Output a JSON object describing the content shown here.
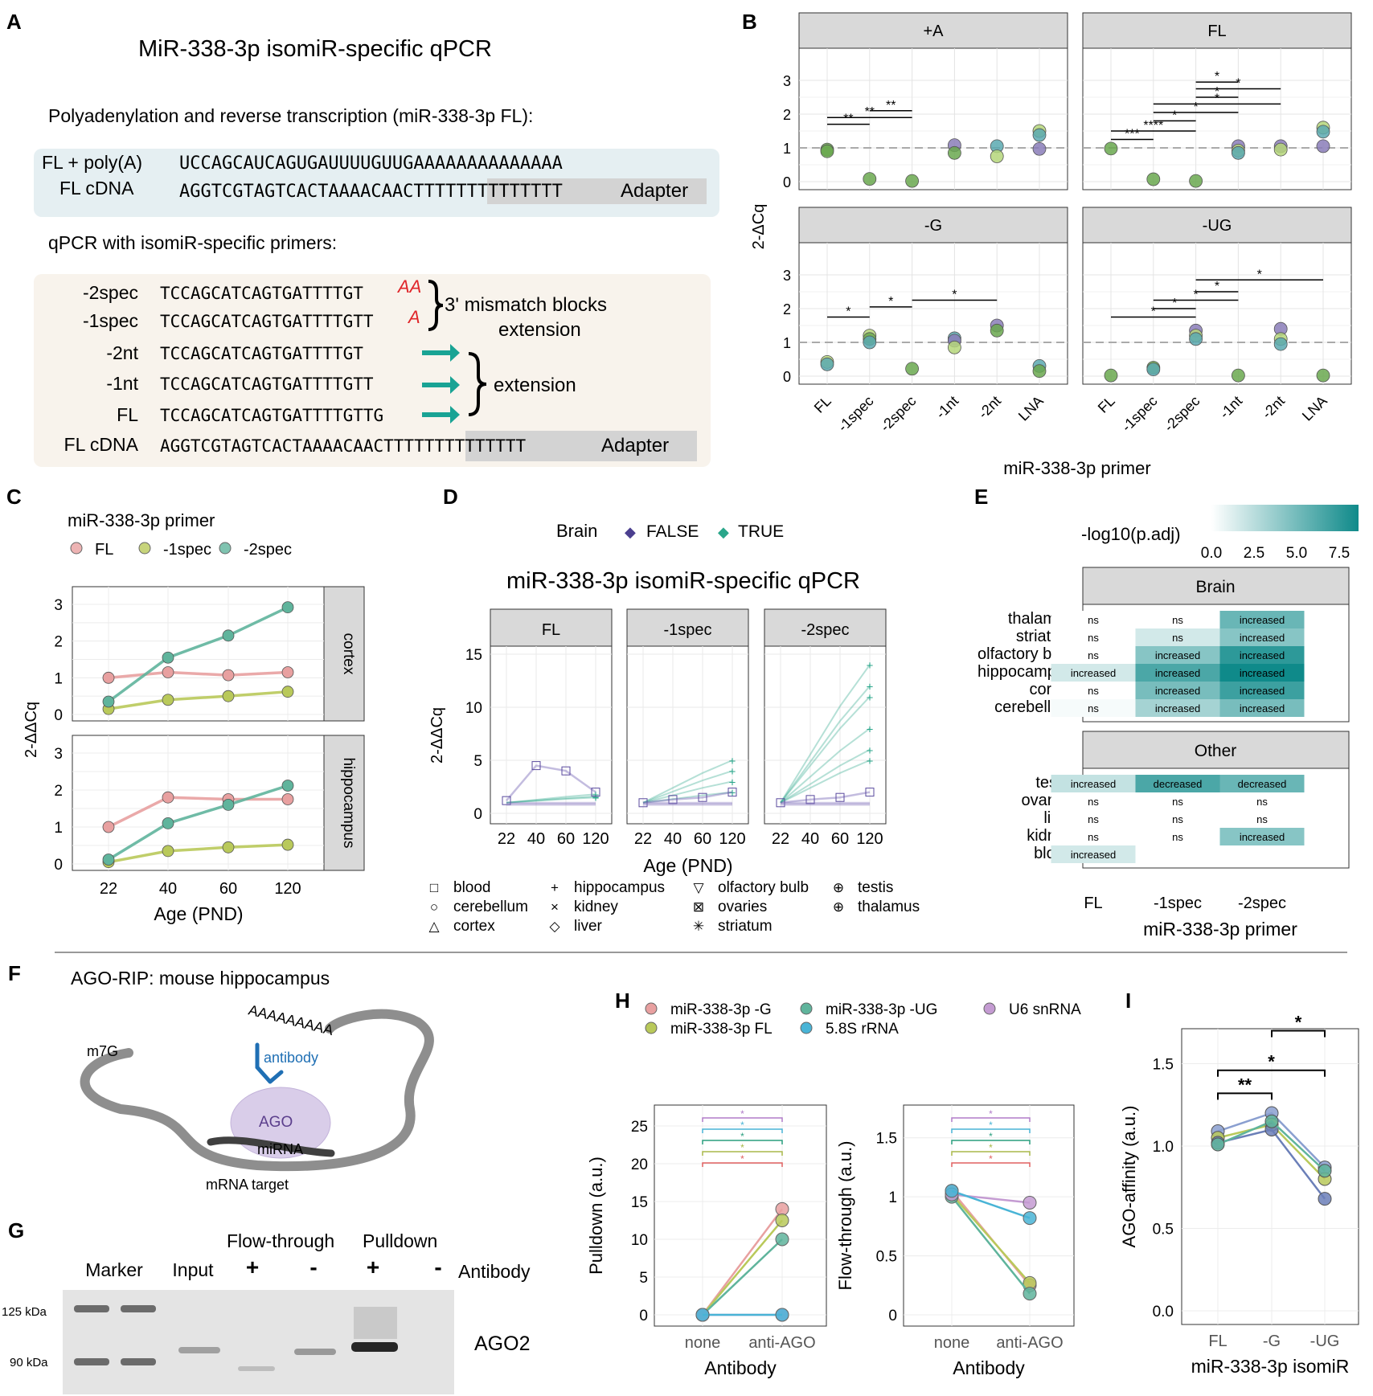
{
  "colors": {
    "fl": "#8fbc3c",
    "m1": "#e8a0a0",
    "g": "#e89a9a",
    "ug": "#5ab394",
    "u6": "#c49bd2",
    "rrna": "#49b4d6",
    "green": "#61a84d",
    "purple": "#5a4a9e",
    "teal": "#2aa68a",
    "arrow": "#19a394",
    "red": "#e0262a",
    "blue": "#2a7fbf",
    "strip": "#d9d9d9"
  },
  "A": {
    "letter": "A",
    "title": "MiR-338-3p isomiR-specific qPCR",
    "subtitle1": "Polyadenylation and reverse transcription (miR-338-3p FL):",
    "box1": {
      "l1": "FL + poly(A)",
      "s1": "UCCAGCAUCAGUGAUUUUGUUGAAAAAAAAAAAAAA",
      "l2": "FL cDNA",
      "s2": "AGGTCGTAGTCACTAAAACAACTTTTTTTTTTTTTT",
      "adapter": "Adapter"
    },
    "subtitle2": "qPCR with isomiR-specific primers:",
    "primers": [
      {
        "label": "-2spec",
        "seq": "TCCAGCATCAGTGATTTTGT",
        "tail": "AA"
      },
      {
        "label": "-1spec",
        "seq": "TCCAGCATCAGTGATTTTGTT",
        "tail": "A"
      },
      {
        "label": "-2nt",
        "seq": "TCCAGCATCAGTGATTTTGT"
      },
      {
        "label": "-1nt",
        "seq": "TCCAGCATCAGTGATTTTGTT"
      },
      {
        "label": "FL",
        "seq": "TCCAGCATCAGTGATTTTGTTG"
      },
      {
        "label": "FL cDNA",
        "seq": "AGGTCGTAGTCACTAAAACAACTTTTTTTTTTTTTT"
      }
    ],
    "adapter2": "Adapter",
    "mismatch": "3' mismatch blocks",
    "mismatch2": "extension",
    "extension": "extension"
  },
  "chart_data": [
    {
      "panel": "B",
      "type": "scatter",
      "ylabel": "2-ΔCq",
      "xlabel": "miR-338-3p primer",
      "ylim": [
        0,
        3
      ],
      "categories": [
        "FL",
        "-1spec",
        "-2spec",
        "-1nt",
        "-2nt",
        "LNA"
      ],
      "facets": [
        {
          "title": "+A",
          "points": [
            [
              0,
              0.95,
              "green"
            ],
            [
              0,
              0.9,
              "green"
            ],
            [
              1,
              0.08,
              "green"
            ],
            [
              2,
              0.02,
              "green"
            ],
            [
              3,
              1.08,
              "purple"
            ],
            [
              3,
              0.85,
              "green"
            ],
            [
              4,
              1.05,
              "blue"
            ],
            [
              4,
              0.75,
              "light"
            ],
            [
              5,
              1.5,
              "light"
            ],
            [
              5,
              1.38,
              "blue"
            ],
            [
              5,
              0.97,
              "purple"
            ]
          ],
          "sig": [
            [
              0,
              1,
              "**",
              1.7
            ],
            [
              0,
              2,
              "**",
              1.9
            ],
            [
              1,
              2,
              "**",
              2.1
            ]
          ]
        },
        {
          "title": "FL",
          "points": [
            [
              0,
              0.98,
              "green"
            ],
            [
              1,
              0.07,
              "green"
            ],
            [
              2,
              0.02,
              "green"
            ],
            [
              3,
              1.05,
              "purple"
            ],
            [
              3,
              0.92,
              "light"
            ],
            [
              3,
              0.85,
              "blue"
            ],
            [
              4,
              1.05,
              "purple"
            ],
            [
              4,
              0.95,
              "light"
            ],
            [
              5,
              1.6,
              "light"
            ],
            [
              5,
              1.48,
              "blue"
            ],
            [
              5,
              1.05,
              "purple"
            ]
          ],
          "sig": [
            [
              0,
              1,
              "***",
              1.25
            ],
            [
              0,
              2,
              "****",
              1.5
            ],
            [
              1,
              2,
              "*",
              1.8
            ],
            [
              1,
              3,
              "*",
              2.05
            ],
            [
              1,
              4,
              "*",
              2.3
            ],
            [
              2,
              3,
              "*",
              2.5
            ],
            [
              2,
              4,
              "*",
              2.75
            ],
            [
              2,
              3,
              "*",
              2.95
            ]
          ]
        },
        {
          "title": "-G",
          "points": [
            [
              0,
              0.42,
              "light"
            ],
            [
              0,
              0.35,
              "blue"
            ],
            [
              1,
              1.2,
              "light"
            ],
            [
              1,
              1.1,
              "green"
            ],
            [
              1,
              1.0,
              "blue"
            ],
            [
              2,
              0.22,
              "green"
            ],
            [
              3,
              1.12,
              "blue"
            ],
            [
              3,
              1.05,
              "purple"
            ],
            [
              3,
              0.85,
              "light"
            ],
            [
              4,
              1.5,
              "purple"
            ],
            [
              4,
              1.35,
              "green"
            ],
            [
              5,
              0.3,
              "blue"
            ],
            [
              5,
              0.15,
              "green"
            ]
          ],
          "sig": [
            [
              0,
              1,
              "*",
              1.75
            ],
            [
              1,
              2,
              "*",
              2.05
            ],
            [
              2,
              4,
              "*",
              2.25
            ]
          ]
        },
        {
          "title": "-UG",
          "points": [
            [
              0,
              0.02,
              "green"
            ],
            [
              1,
              0.25,
              "green"
            ],
            [
              1,
              0.2,
              "blue"
            ],
            [
              2,
              1.35,
              "purple"
            ],
            [
              2,
              1.2,
              "light"
            ],
            [
              2,
              1.1,
              "blue"
            ],
            [
              3,
              0.02,
              "green"
            ],
            [
              4,
              1.4,
              "purple"
            ],
            [
              4,
              1.1,
              "light"
            ],
            [
              4,
              0.95,
              "blue"
            ],
            [
              5,
              0.02,
              "green"
            ]
          ],
          "sig": [
            [
              0,
              2,
              "*",
              1.75
            ],
            [
              1,
              2,
              "*",
              2.0
            ],
            [
              1,
              3,
              "*",
              2.25
            ],
            [
              2,
              3,
              "*",
              2.5
            ],
            [
              2,
              5,
              "*",
              2.85
            ]
          ]
        }
      ]
    },
    {
      "panel": "C",
      "type": "line",
      "title": "miR-338-3p primer",
      "legend": [
        "FL",
        "-1spec",
        "-2spec"
      ],
      "xlabel": "Age (PND)",
      "ylabel": "2-ΔΔCq",
      "x": [
        "22",
        "40",
        "60",
        "120"
      ],
      "ylim": [
        0,
        3
      ],
      "facets": [
        {
          "title": "cortex",
          "series": [
            {
              "name": "FL",
              "values": [
                1.0,
                1.15,
                1.07,
                1.15
              ]
            },
            {
              "name": "-1spec",
              "values": [
                0.15,
                0.4,
                0.5,
                0.62
              ]
            },
            {
              "name": "-2spec",
              "values": [
                0.35,
                1.55,
                2.15,
                2.92
              ]
            }
          ]
        },
        {
          "title": "hippocampus",
          "series": [
            {
              "name": "FL",
              "values": [
                1.0,
                1.8,
                1.75,
                1.75
              ]
            },
            {
              "name": "-1spec",
              "values": [
                0.05,
                0.35,
                0.45,
                0.52
              ]
            },
            {
              "name": "-2spec",
              "values": [
                0.12,
                1.1,
                1.6,
                2.12
              ]
            }
          ]
        }
      ]
    },
    {
      "panel": "D",
      "type": "line",
      "title": "miR-338-3p isomiR-specific qPCR",
      "legend_title": "Brain",
      "legend": [
        "FALSE",
        "TRUE"
      ],
      "xlabel": "Age (PND)",
      "ylabel": "2-ΔΔCq",
      "x": [
        "22",
        "40",
        "60",
        "120"
      ],
      "ylim": [
        0,
        15
      ],
      "yticks": [
        0,
        5,
        10,
        15
      ],
      "facets": [
        {
          "title": "FL"
        },
        {
          "title": "-1spec"
        },
        {
          "title": "-2spec"
        }
      ],
      "shape_legend": [
        [
          "□",
          "blood"
        ],
        [
          "○",
          "cerebellum"
        ],
        [
          "△",
          "cortex"
        ],
        [
          "+",
          "hippocampus"
        ],
        [
          "×",
          "kidney"
        ],
        [
          "◇",
          "liver"
        ],
        [
          "▽",
          "olfactory bulb"
        ],
        [
          "⊠",
          "ovaries"
        ],
        [
          "✳",
          "striatum"
        ],
        [
          "⊕",
          "testis"
        ],
        [
          "⊕",
          "thalamus"
        ]
      ]
    },
    {
      "panel": "E",
      "type": "heatmap",
      "legend_title": "-log10(p.adj)",
      "legend_ticks": [
        "0.0",
        "2.5",
        "5.0",
        "7.5"
      ],
      "xlabel": "miR-338-3p primer",
      "columns": [
        "FL",
        "-1spec",
        "-2spec"
      ],
      "groups": [
        {
          "title": "Brain",
          "rows": [
            {
              "name": "thalamus",
              "cells": [
                "ns",
                "ns",
                "increased"
              ],
              "v": [
                0,
                0,
                5
              ]
            },
            {
              "name": "striatum",
              "cells": [
                "ns",
                "ns",
                "increased"
              ],
              "v": [
                0,
                1.5,
                4
              ]
            },
            {
              "name": "olfactory bulb",
              "cells": [
                "ns",
                "increased",
                "increased"
              ],
              "v": [
                0,
                4,
                7
              ]
            },
            {
              "name": "hippocampus",
              "cells": [
                "increased",
                "increased",
                "increased"
              ],
              "v": [
                1.5,
                6,
                8
              ]
            },
            {
              "name": "cortex",
              "cells": [
                "ns",
                "increased",
                "increased"
              ],
              "v": [
                0,
                4.5,
                6.5
              ]
            },
            {
              "name": "cerebellum",
              "cells": [
                "ns",
                "increased",
                "increased"
              ],
              "v": [
                0.3,
                3,
                4.5
              ]
            }
          ]
        },
        {
          "title": "Other",
          "rows": [
            {
              "name": "testis",
              "cells": [
                "increased",
                "decreased",
                "decreased"
              ],
              "v": [
                2,
                6,
                5
              ]
            },
            {
              "name": "ovaries",
              "cells": [
                "ns",
                "ns",
                "ns"
              ],
              "v": [
                0,
                0,
                0
              ]
            },
            {
              "name": "liver",
              "cells": [
                "ns",
                "ns",
                "ns"
              ],
              "v": [
                0,
                0,
                0
              ]
            },
            {
              "name": "kidney",
              "cells": [
                "ns",
                "ns",
                "increased"
              ],
              "v": [
                0,
                0,
                4
              ]
            },
            {
              "name": "blood",
              "cells": [
                "increased",
                "",
                ""
              ],
              "v": [
                1.5,
                -1,
                -1
              ]
            }
          ]
        }
      ]
    },
    {
      "panel": "H",
      "type": "line",
      "legend": [
        "miR-338-3p -G",
        "miR-338-3p -UG",
        "U6 snRNA",
        "miR-338-3p FL",
        "5.8S rRNA"
      ],
      "xlabel": "Antibody",
      "x": [
        "none",
        "anti-AGO"
      ],
      "charts": [
        {
          "ylabel": "Pulldown (a.u.)",
          "ylim": [
            0,
            25
          ],
          "yticks": [
            0,
            5,
            10,
            15,
            20,
            25
          ],
          "series": [
            {
              "name": "miR-338-3p -G",
              "values": [
                0,
                14
              ]
            },
            {
              "name": "miR-338-3p FL",
              "values": [
                0,
                12.5
              ]
            },
            {
              "name": "miR-338-3p -UG",
              "values": [
                0,
                10
              ]
            },
            {
              "name": "U6 snRNA",
              "values": [
                0,
                0
              ]
            },
            {
              "name": "5.8S rRNA",
              "values": [
                0,
                0
              ]
            }
          ]
        },
        {
          "ylabel": "Flow-through (a.u.)",
          "ylim": [
            0,
            1.6
          ],
          "yticks": [
            0,
            0.5,
            1,
            1.5
          ],
          "series": [
            {
              "name": "miR-338-3p -G",
              "values": [
                1.05,
                0.25
              ]
            },
            {
              "name": "miR-338-3p FL",
              "values": [
                1.02,
                0.27
              ]
            },
            {
              "name": "miR-338-3p -UG",
              "values": [
                1.0,
                0.18
              ]
            },
            {
              "name": "U6 snRNA",
              "values": [
                1.02,
                0.95
              ]
            },
            {
              "name": "5.8S rRNA",
              "values": [
                1.05,
                0.82
              ]
            }
          ]
        }
      ]
    },
    {
      "panel": "I",
      "type": "line",
      "xlabel": "miR-338-3p isomiR",
      "ylabel": "AGO-affinity (a.u.)",
      "x": [
        "FL",
        "-G",
        "-UG"
      ],
      "ylim": [
        0,
        1.6
      ],
      "yticks": [
        "0.0",
        "0.5",
        "1.0",
        "1.5"
      ],
      "series": [
        {
          "values": [
            1.09,
            1.2,
            0.87
          ]
        },
        {
          "values": [
            1.05,
            1.13,
            0.8
          ]
        },
        {
          "values": [
            1.02,
            1.1,
            0.68
          ]
        },
        {
          "values": [
            1.01,
            1.15,
            0.85
          ]
        }
      ],
      "sig": [
        [
          "FL",
          "-G",
          "**"
        ],
        [
          "FL",
          "-UG",
          "*"
        ],
        [
          "-G",
          "-UG",
          "*"
        ]
      ]
    }
  ],
  "F": {
    "letter": "F",
    "title": "AGO-RIP: mouse hippocampus",
    "m7g": "m7G",
    "polyA": "AAAAAAAAA",
    "antibody": "antibody",
    "ago": "AGO",
    "mirna": "miRNA",
    "target": "mRNA target"
  },
  "G": {
    "letter": "G",
    "flow": "Flow-through",
    "pulldown": "Pulldown",
    "lanes": [
      "Marker",
      "Input",
      "+",
      "-",
      "+",
      "-"
    ],
    "antibody": "Antibody",
    "kda125": "125 kDa",
    "kda90": "90 kDa",
    "band": "AGO2"
  },
  "letters": {
    "B": "B",
    "C": "C",
    "D": "D",
    "E": "E",
    "H": "H",
    "I": "I"
  }
}
